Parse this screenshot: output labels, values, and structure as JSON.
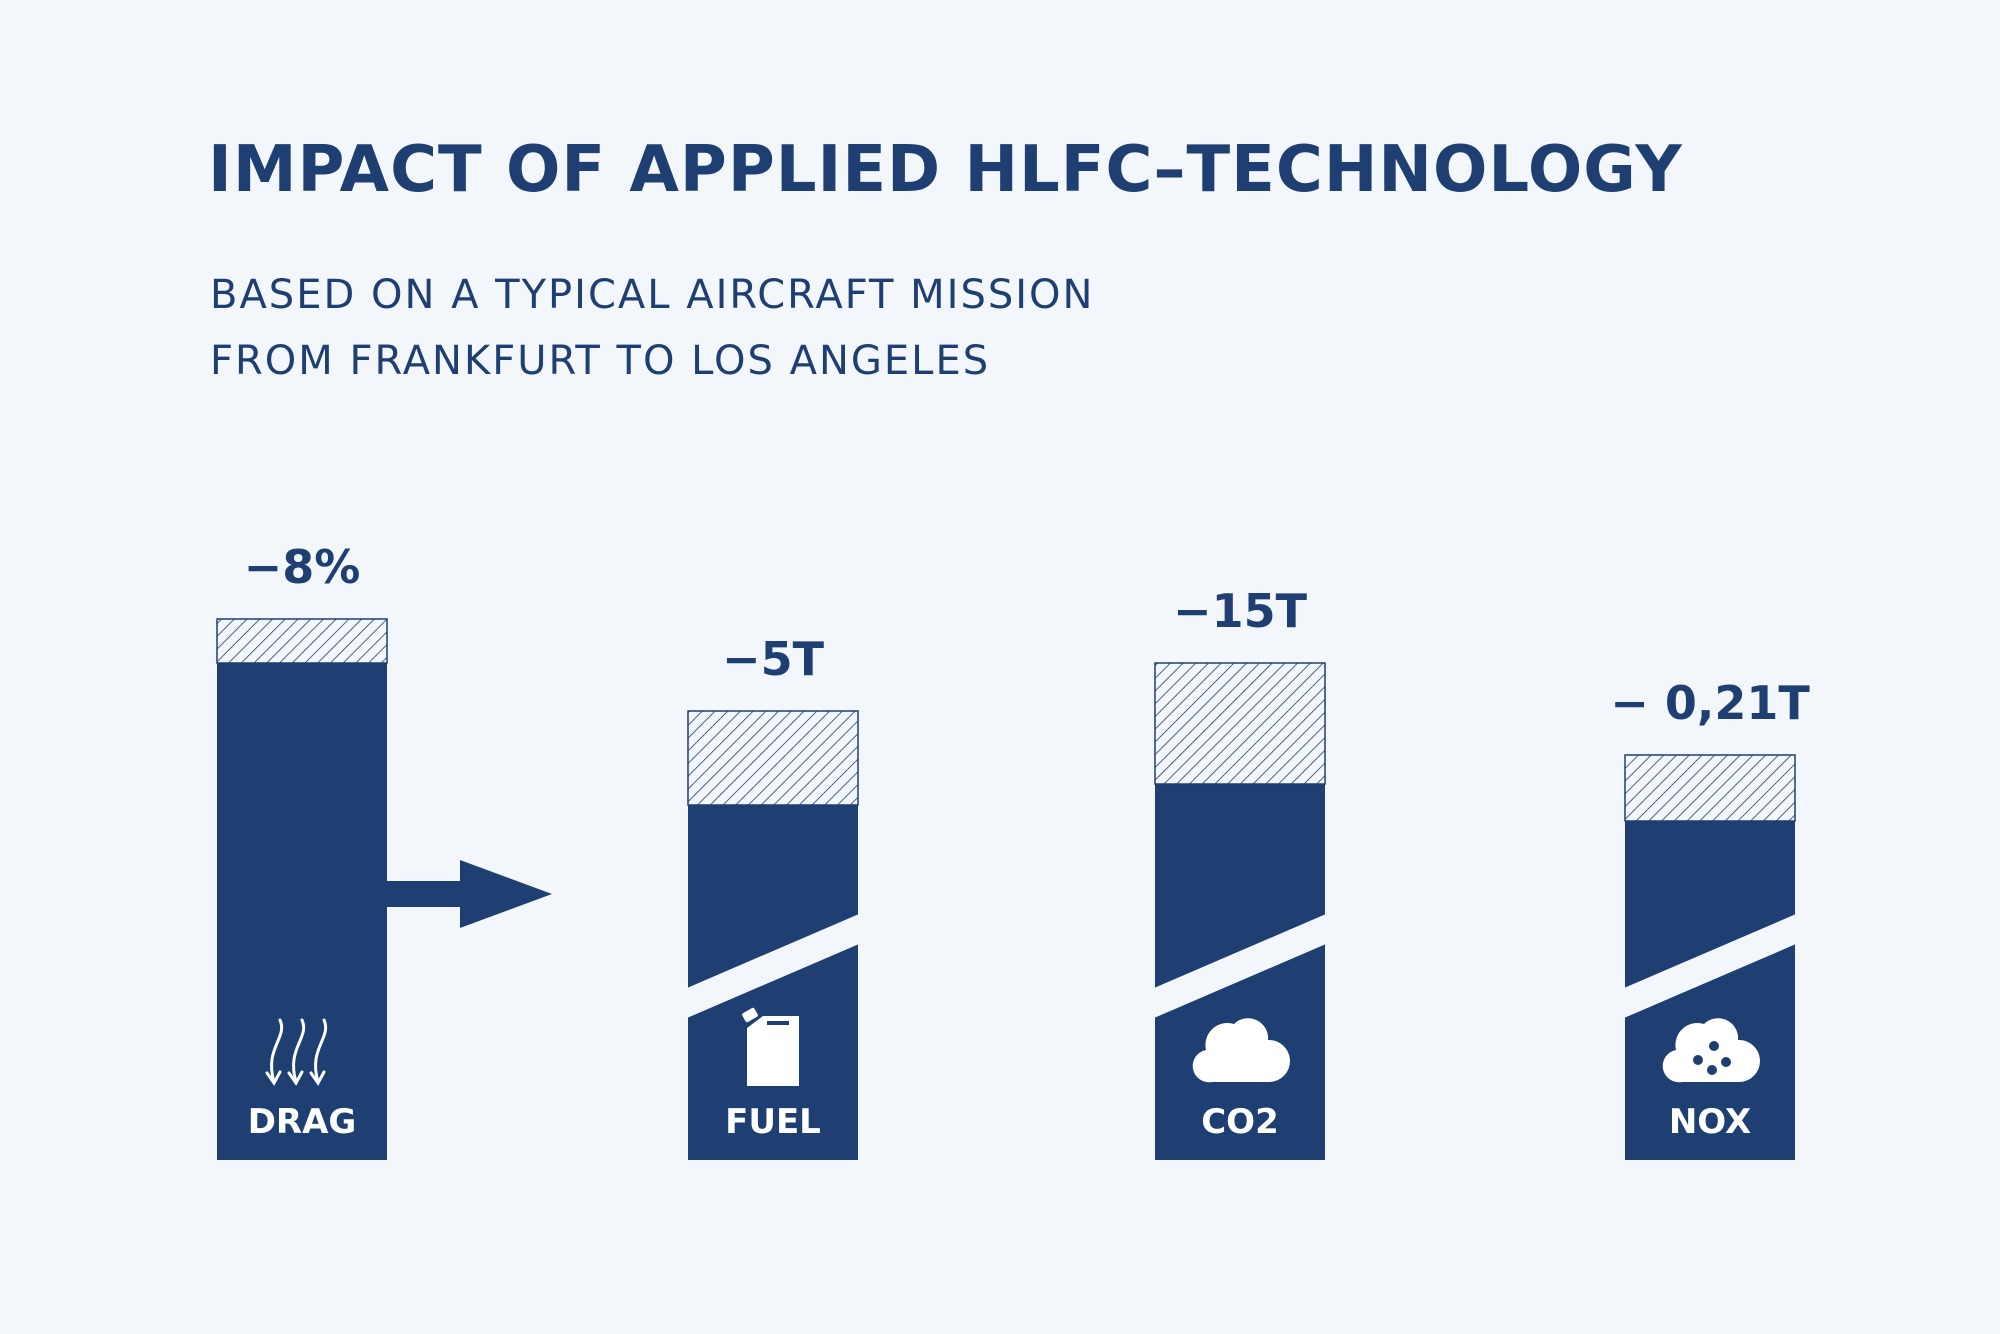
{
  "header": {
    "title": "IMPACT OF APPLIED HLFC–TECHNOLOGY",
    "subtitle_line1": "BASED ON A TYPICAL AIRCRAFT MISSION",
    "subtitle_line2": "FROM FRANKFURT TO LOS ANGELES"
  },
  "colors": {
    "background": "#f3f6fa",
    "bar": "#1f3f73",
    "hatch": "#1f3f73",
    "icon": "#ffffff"
  },
  "chart_data": {
    "type": "bar",
    "title": "IMPACT OF APPLIED HLFC–TECHNOLOGY",
    "subtitle": "BASED ON A TYPICAL AIRCRAFT MISSION FROM FRANKFURT TO LOS ANGELES",
    "xlabel": "",
    "ylabel": "",
    "categories": [
      "DRAG",
      "FUEL",
      "CO2",
      "NOX"
    ],
    "reductions": [
      "−8%",
      "−5T",
      "−15T",
      "− 0,21T"
    ],
    "icons": [
      "airflow-icon",
      "fuel-canister-icon",
      "cloud-icon",
      "particle-cloud-icon"
    ],
    "axis_break": [
      false,
      true,
      true,
      true
    ],
    "grid": false,
    "legend": "none"
  }
}
